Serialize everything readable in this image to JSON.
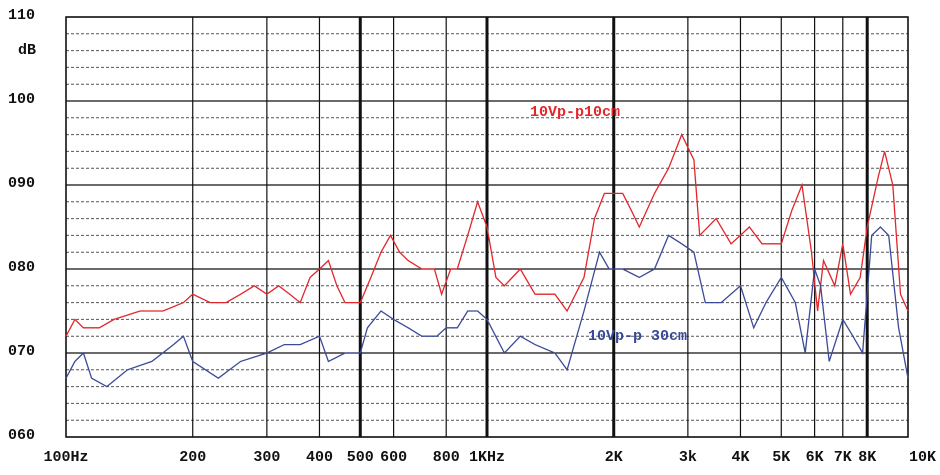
{
  "chart_data": {
    "type": "line",
    "y_label": "dB",
    "log_x": true,
    "grid": true,
    "xlim": [
      100,
      10000
    ],
    "ylim": [
      60,
      110
    ],
    "xticks": [
      {
        "value": 100,
        "label": "100Hz"
      },
      200,
      300,
      400,
      500,
      600,
      800,
      {
        "value": 1000,
        "label": "1KHz"
      },
      {
        "value": 2000,
        "label": "2K"
      },
      {
        "value": 3000,
        "label": "3k"
      },
      {
        "value": 4000,
        "label": "4K"
      },
      {
        "value": 5000,
        "label": "5K"
      },
      {
        "value": 6000,
        "label": "6K"
      },
      {
        "value": 7000,
        "label": "7K"
      },
      {
        "value": 8000,
        "label": "8K"
      },
      {
        "value": 10000,
        "label": "10K"
      }
    ],
    "yticks": [
      {
        "value": 60,
        "label": "060"
      },
      {
        "value": 70,
        "label": "070"
      },
      {
        "value": 80,
        "label": "080"
      },
      {
        "value": 90,
        "label": "090"
      },
      100,
      110
    ],
    "series": [
      {
        "name": "10Vp-p10cm",
        "color": "#e3262b",
        "x": [
          100,
          105,
          110,
          120,
          130,
          150,
          170,
          190,
          200,
          220,
          240,
          260,
          280,
          300,
          320,
          340,
          360,
          380,
          400,
          420,
          440,
          460,
          480,
          500,
          530,
          560,
          590,
          620,
          650,
          700,
          750,
          780,
          820,
          850,
          900,
          950,
          1000,
          1050,
          1100,
          1200,
          1300,
          1450,
          1550,
          1700,
          1800,
          1900,
          2000,
          2100,
          2200,
          2300,
          2500,
          2700,
          2900,
          3100,
          3200,
          3500,
          3800,
          4200,
          4500,
          5000,
          5300,
          5600,
          5900,
          6100,
          6300,
          6700,
          7000,
          7300,
          7700,
          8000,
          8500,
          8800,
          9200,
          9600,
          10000
        ],
        "values": [
          72,
          74,
          73,
          73,
          74,
          75,
          75,
          76,
          77,
          76,
          76,
          77,
          78,
          77,
          78,
          77,
          76,
          79,
          80,
          81,
          78,
          76,
          76,
          76,
          79,
          82,
          84,
          82,
          81,
          80,
          80,
          77,
          80,
          80,
          84,
          88,
          85,
          79,
          78,
          80,
          77,
          77,
          75,
          79,
          86,
          89,
          89,
          89,
          87,
          85,
          89,
          92,
          96,
          93,
          84,
          86,
          83,
          85,
          83,
          83,
          87,
          90,
          82,
          75,
          81,
          78,
          83,
          77,
          79,
          85,
          91,
          94,
          90,
          77,
          75
        ]
      },
      {
        "name": "10Vp-p 30cm",
        "color": "#3b4a98",
        "x": [
          100,
          105,
          110,
          115,
          125,
          140,
          160,
          180,
          190,
          200,
          230,
          260,
          300,
          330,
          360,
          400,
          420,
          460,
          500,
          520,
          560,
          600,
          650,
          700,
          760,
          800,
          850,
          900,
          950,
          1000,
          1100,
          1200,
          1300,
          1450,
          1550,
          1700,
          1850,
          1950,
          2100,
          2300,
          2500,
          2700,
          2900,
          3100,
          3300,
          3600,
          4000,
          4300,
          4600,
          5000,
          5400,
          5700,
          6000,
          6200,
          6500,
          7000,
          7400,
          7800,
          8200,
          8600,
          9000,
          9500,
          10000
        ],
        "values": [
          67,
          69,
          70,
          67,
          66,
          68,
          69,
          71,
          72,
          69,
          67,
          69,
          70,
          71,
          71,
          72,
          69,
          70,
          70,
          73,
          75,
          74,
          73,
          72,
          72,
          73,
          73,
          75,
          75,
          74,
          70,
          72,
          71,
          70,
          68,
          75,
          82,
          80,
          80,
          79,
          80,
          84,
          83,
          82,
          76,
          76,
          78,
          73,
          76,
          79,
          76,
          70,
          80,
          78,
          69,
          74,
          72,
          70,
          84,
          85,
          84,
          73,
          67
        ]
      }
    ]
  }
}
